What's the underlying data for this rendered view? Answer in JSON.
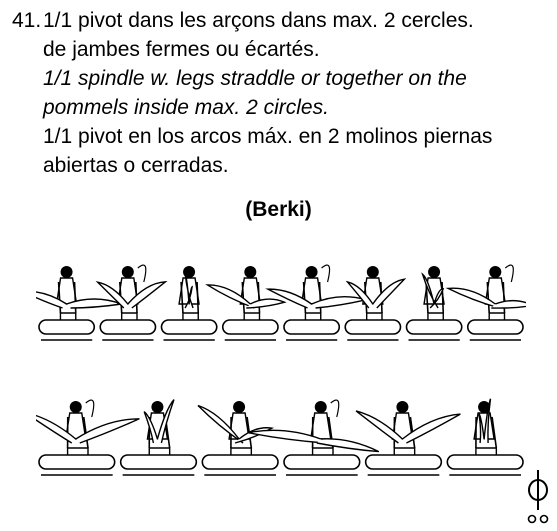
{
  "entry": {
    "number": "41.",
    "lines": [
      {
        "text": "1/1 pivot dans les arçons dans max. 2 cercles.",
        "italic": false
      },
      {
        "text": "de jambes fermes ou écartés.",
        "italic": false
      },
      {
        "text": "1/1 spindle w. legs straddle or together on the",
        "italic": true
      },
      {
        "text": "pommels inside max. 2 circles.",
        "italic": true
      },
      {
        "text": "1/1 pivot en los arcos máx. en 2 molinos piernas",
        "italic": false
      },
      {
        "text": "abiertas o cerradas.",
        "italic": false
      }
    ]
  },
  "figure": {
    "title": "(Berki)",
    "rows": [
      {
        "poses": 8
      },
      {
        "poses": 6
      }
    ]
  },
  "symbol": {
    "icon": "spindle-symbol-icon",
    "color": "#000000"
  }
}
